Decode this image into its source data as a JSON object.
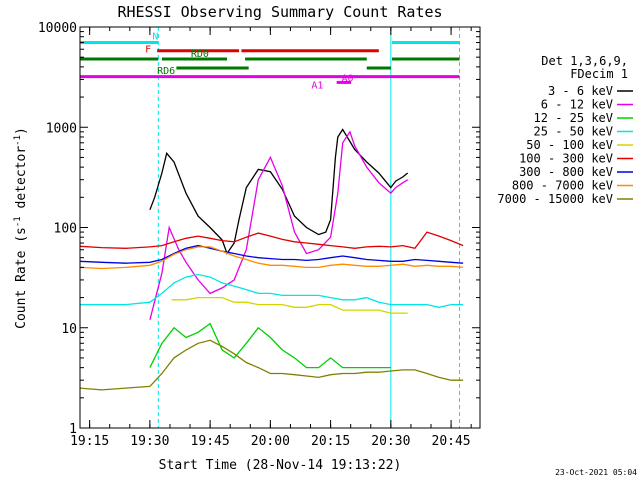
{
  "chart_data": {
    "type": "line",
    "title": "RHESSI Observing Summary Count Rates",
    "xlabel": "Start Time (28-Nov-14 19:13:22)",
    "ylabel_main": "Count Rate (s",
    "ylabel_sup1": "-1",
    "ylabel_mid": " detector",
    "ylabel_sup2": "-1",
    "ylabel_end": ")",
    "xlim": [
      19.21,
      20.87
    ],
    "ylim": [
      1,
      10000
    ],
    "y_scale": "log",
    "x_ticks": [
      19.25,
      19.5,
      19.75,
      20.0,
      20.25,
      20.5,
      20.75
    ],
    "x_tick_labels": [
      "19:15",
      "19:30",
      "19:45",
      "20:00",
      "20:15",
      "20:30",
      "20:45"
    ],
    "y_ticks": [
      1,
      10,
      100,
      1000,
      10000
    ],
    "y_tick_labels": [
      "1",
      "10",
      "100",
      "1000",
      "10000"
    ],
    "legend_header": [
      "Det 1,3,6,9,",
      "FDecim 1"
    ],
    "legend_position": "right",
    "series": [
      {
        "name": "3 - 6 keV",
        "color": "#000000",
        "x": [
          19.5,
          19.52,
          19.55,
          19.57,
          19.6,
          19.65,
          19.7,
          19.75,
          19.8,
          19.82,
          19.85,
          19.87,
          19.9,
          19.95,
          20.0,
          20.05,
          20.1,
          20.15,
          20.2,
          20.23,
          20.25,
          20.27,
          20.28,
          20.3,
          20.35,
          20.4,
          20.45,
          20.5,
          20.52,
          20.55,
          20.57
        ],
        "y": [
          150,
          200,
          350,
          550,
          450,
          220,
          130,
          100,
          75,
          55,
          70,
          120,
          250,
          380,
          360,
          240,
          130,
          100,
          85,
          90,
          120,
          500,
          800,
          950,
          600,
          450,
          350,
          250,
          290,
          320,
          350
        ]
      },
      {
        "name": "6 - 12 keV",
        "color": "#e600e6",
        "x": [
          19.5,
          19.55,
          19.58,
          19.62,
          19.65,
          19.7,
          19.75,
          19.8,
          19.85,
          19.9,
          19.95,
          20.0,
          20.05,
          20.1,
          20.15,
          20.2,
          20.25,
          20.28,
          20.3,
          20.33,
          20.35,
          20.4,
          20.45,
          20.5,
          20.52,
          20.55,
          20.57
        ],
        "y": [
          12,
          35,
          100,
          60,
          45,
          30,
          22,
          25,
          30,
          60,
          300,
          500,
          260,
          90,
          55,
          60,
          80,
          220,
          700,
          900,
          650,
          400,
          280,
          220,
          250,
          280,
          300
        ]
      },
      {
        "name": "12 - 25 keV",
        "color": "#00d000",
        "x": [
          19.5,
          19.55,
          19.6,
          19.65,
          19.7,
          19.75,
          19.8,
          19.85,
          19.9,
          19.95,
          20.0,
          20.05,
          20.1,
          20.15,
          20.2,
          20.25,
          20.3,
          20.35,
          20.4,
          20.45,
          20.5
        ],
        "y": [
          4,
          7,
          10,
          8,
          9,
          11,
          6,
          5,
          7,
          10,
          8,
          6,
          5,
          4,
          4,
          5,
          4,
          4,
          4,
          4,
          4
        ]
      },
      {
        "name": "25 - 50 keV",
        "color": "#00e5e5",
        "x": [
          19.21,
          19.3,
          19.4,
          19.5,
          19.55,
          19.6,
          19.65,
          19.7,
          19.75,
          19.8,
          19.85,
          19.9,
          19.95,
          20.0,
          20.05,
          20.1,
          20.15,
          20.2,
          20.25,
          20.3,
          20.35,
          20.4,
          20.45,
          20.5,
          20.55,
          20.6,
          20.65,
          20.7,
          20.75,
          20.8
        ],
        "y": [
          17,
          17,
          17,
          18,
          22,
          28,
          32,
          34,
          32,
          28,
          26,
          24,
          22,
          22,
          21,
          21,
          21,
          21,
          20,
          19,
          19,
          20,
          18,
          17,
          17,
          17,
          17,
          16,
          17,
          17
        ]
      },
      {
        "name": "50 - 100 keV",
        "color": "#d4d400",
        "x": [
          19.59,
          19.65,
          19.7,
          19.75,
          19.8,
          19.85,
          19.9,
          19.95,
          20.0,
          20.05,
          20.1,
          20.15,
          20.2,
          20.25,
          20.3,
          20.35,
          20.4,
          20.45,
          20.5,
          20.55,
          20.57
        ],
        "y": [
          19,
          19,
          20,
          20,
          20,
          18,
          18,
          17,
          17,
          17,
          16,
          16,
          17,
          17,
          15,
          15,
          15,
          15,
          14,
          14,
          14
        ]
      },
      {
        "name": "100 - 300 keV",
        "color": "#e00000",
        "x": [
          19.21,
          19.3,
          19.4,
          19.5,
          19.55,
          19.6,
          19.65,
          19.7,
          19.75,
          19.8,
          19.85,
          19.9,
          19.95,
          20.0,
          20.05,
          20.1,
          20.15,
          20.2,
          20.25,
          20.3,
          20.35,
          20.4,
          20.45,
          20.5,
          20.55,
          20.6,
          20.65,
          20.7,
          20.75,
          20.8
        ],
        "y": [
          65,
          63,
          62,
          64,
          66,
          72,
          78,
          82,
          78,
          74,
          72,
          80,
          88,
          82,
          76,
          72,
          70,
          68,
          66,
          64,
          62,
          64,
          65,
          64,
          66,
          62,
          90,
          82,
          74,
          66
        ]
      },
      {
        "name": "300 - 800 keV",
        "color": "#0000e0",
        "x": [
          19.21,
          19.3,
          19.4,
          19.5,
          19.55,
          19.6,
          19.65,
          19.7,
          19.75,
          19.8,
          19.85,
          19.9,
          19.95,
          20.0,
          20.05,
          20.1,
          20.15,
          20.2,
          20.25,
          20.3,
          20.35,
          20.4,
          20.45,
          20.5,
          20.55,
          20.6,
          20.65,
          20.7,
          20.75,
          20.8
        ],
        "y": [
          46,
          45,
          44,
          45,
          48,
          55,
          62,
          66,
          62,
          58,
          55,
          52,
          50,
          49,
          48,
          48,
          47,
          48,
          50,
          52,
          50,
          48,
          47,
          46,
          46,
          48,
          47,
          46,
          45,
          44
        ]
      },
      {
        "name": "800 - 7000 keV",
        "color": "#ff8c00",
        "x": [
          19.21,
          19.3,
          19.4,
          19.5,
          19.55,
          19.6,
          19.65,
          19.7,
          19.75,
          19.8,
          19.85,
          19.9,
          19.95,
          20.0,
          20.05,
          20.1,
          20.15,
          20.2,
          20.25,
          20.3,
          20.35,
          20.4,
          20.45,
          20.5,
          20.55,
          20.6,
          20.65,
          20.7,
          20.75,
          20.8
        ],
        "y": [
          40,
          39,
          40,
          42,
          46,
          54,
          60,
          64,
          64,
          58,
          52,
          48,
          44,
          42,
          42,
          41,
          40,
          40,
          42,
          43,
          42,
          41,
          41,
          42,
          43,
          41,
          42,
          41,
          41,
          40
        ]
      },
      {
        "name": "7000 - 15000 keV",
        "color": "#808000",
        "x": [
          19.21,
          19.3,
          19.4,
          19.5,
          19.55,
          19.6,
          19.65,
          19.7,
          19.75,
          19.8,
          19.85,
          19.9,
          19.95,
          20.0,
          20.05,
          20.1,
          20.15,
          20.2,
          20.25,
          20.3,
          20.35,
          20.4,
          20.45,
          20.5,
          20.55,
          20.6,
          20.65,
          20.7,
          20.75,
          20.8
        ],
        "y": [
          2.5,
          2.4,
          2.5,
          2.6,
          3.5,
          5,
          6,
          7,
          7.5,
          6.5,
          5.5,
          4.5,
          4,
          3.5,
          3.5,
          3.4,
          3.3,
          3.2,
          3.4,
          3.5,
          3.5,
          3.6,
          3.6,
          3.7,
          3.8,
          3.8,
          3.5,
          3.2,
          3.0,
          3.0
        ]
      }
    ],
    "vertical_markers": [
      {
        "x": 19.535,
        "color": "#00e5e5",
        "style": "dashed"
      },
      {
        "x": 20.5,
        "color": "#00e5e5",
        "style": "solid"
      },
      {
        "x": 20.785,
        "color": "#00e5e5",
        "style": "dashed"
      }
    ],
    "flag_bars": [
      {
        "label": "N",
        "color": "#00e5e5",
        "y_level": 7000,
        "segments": [
          [
            19.21,
            19.535
          ],
          [
            20.505,
            20.785
          ]
        ]
      },
      {
        "label": "F",
        "color": "#e00000",
        "y_level": 5800,
        "segments": [
          [
            19.53,
            19.87
          ],
          [
            19.88,
            20.45
          ]
        ]
      },
      {
        "label": "RD0",
        "color": "#007700",
        "y_level": 4800,
        "segments": [
          [
            19.21,
            19.535
          ],
          [
            19.55,
            19.82
          ],
          [
            19.895,
            20.4
          ],
          [
            20.505,
            20.785
          ]
        ]
      },
      {
        "label": "RD6",
        "color": "#007700",
        "y_level": 3900,
        "segments": [
          [
            19.61,
            19.91
          ],
          [
            20.4,
            20.5
          ]
        ]
      },
      {
        "label": "A1",
        "color": "#e600e6",
        "y_level": 3200,
        "segments": [
          [
            19.21,
            20.785
          ]
        ]
      },
      {
        "label": "A0",
        "color": "#e600e6",
        "y_level": 2800,
        "segments": [
          [
            20.275,
            20.335
          ]
        ]
      }
    ],
    "footer_date": "23-Oct-2021 05:04"
  }
}
